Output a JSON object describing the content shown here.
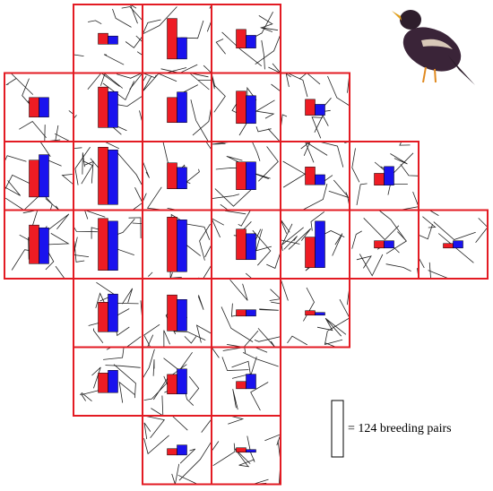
{
  "legend": {
    "value": 124,
    "label": "= 124 breeding pairs"
  },
  "colors": [
    "#ee1c24",
    "#1a12ee"
  ],
  "cells": [
    {
      "values": [
        24,
        18
      ]
    },
    {
      "values": [
        89,
        47
      ]
    },
    {
      "values": [
        41,
        28
      ]
    },
    {
      "values": [
        43,
        43
      ]
    },
    {
      "values": [
        89,
        79
      ]
    },
    {
      "values": [
        55,
        67
      ]
    },
    {
      "values": [
        71,
        61
      ]
    },
    {
      "values": [
        35,
        24
      ]
    },
    {
      "values": [
        81,
        93
      ]
    },
    {
      "values": [
        126,
        120
      ]
    },
    {
      "values": [
        57,
        47
      ]
    },
    {
      "values": [
        61,
        61
      ]
    },
    {
      "values": [
        39,
        22
      ]
    },
    {
      "values": [
        26,
        41
      ]
    },
    {
      "values": [
        85,
        79
      ]
    },
    {
      "values": [
        114,
        108
      ]
    },
    {
      "values": [
        120,
        114
      ]
    },
    {
      "values": [
        67,
        57
      ]
    },
    {
      "values": [
        67,
        102
      ]
    },
    {
      "values": [
        16,
        16
      ]
    },
    {
      "values": [
        10,
        16
      ]
    },
    {
      "values": [
        65,
        83
      ]
    },
    {
      "values": [
        79,
        69
      ]
    },
    {
      "values": [
        14,
        14
      ]
    },
    {
      "values": [
        10,
        6
      ]
    },
    {
      "values": [
        43,
        49
      ]
    },
    {
      "values": [
        43,
        55
      ]
    },
    {
      "values": [
        16,
        32
      ]
    },
    {
      "values": [
        14,
        22
      ]
    },
    {
      "values": [
        10,
        6
      ]
    }
  ]
}
